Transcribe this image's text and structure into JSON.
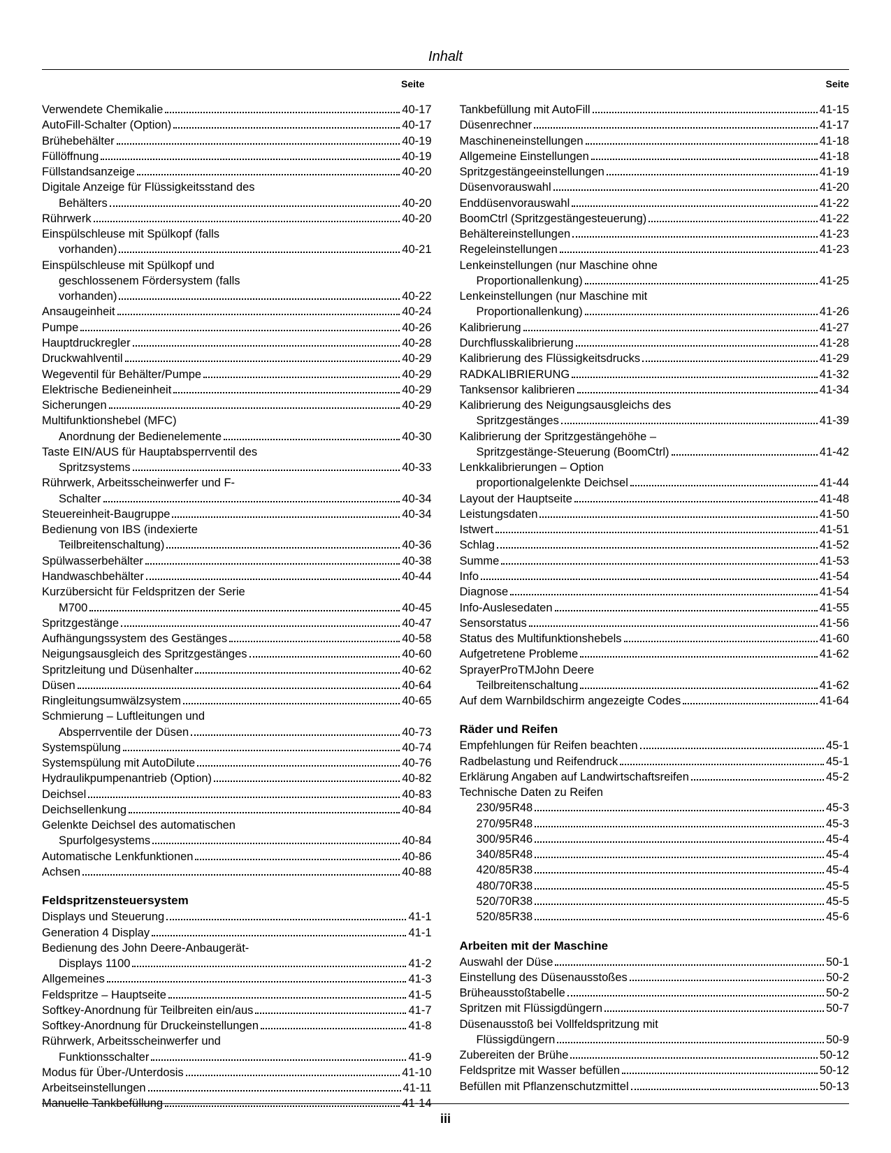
{
  "title": "Inhalt",
  "page_label": "Seite",
  "page_number": "iii",
  "left_column": [
    {
      "type": "entry",
      "label": "Verwendete Chemikalie",
      "page": "40-17"
    },
    {
      "type": "entry",
      "label": "AutoFill-Schalter (Option)",
      "page": "40-17"
    },
    {
      "type": "entry",
      "label": "Brühebehälter",
      "page": "40-19"
    },
    {
      "type": "entry",
      "label": "Füllöffnung",
      "page": "40-19"
    },
    {
      "type": "entry",
      "label": "Füllstandsanzeige",
      "page": "40-20"
    },
    {
      "type": "noleader",
      "label": "Digitale Anzeige für Flüssigkeitsstand des"
    },
    {
      "type": "entry",
      "indent": 1,
      "label": "Behälters",
      "page": "40-20"
    },
    {
      "type": "entry",
      "label": "Rührwerk",
      "page": "40-20"
    },
    {
      "type": "noleader",
      "label": "Einspülschleuse mit Spülkopf (falls"
    },
    {
      "type": "entry",
      "indent": 1,
      "label": "vorhanden)",
      "page": "40-21"
    },
    {
      "type": "noleader",
      "label": "Einspülschleuse mit Spülkopf und"
    },
    {
      "type": "noleader",
      "indent": 1,
      "label": "geschlossenem Fördersystem (falls"
    },
    {
      "type": "entry",
      "indent": 1,
      "label": "vorhanden)",
      "page": "40-22"
    },
    {
      "type": "entry",
      "label": "Ansaugeinheit",
      "page": "40-24"
    },
    {
      "type": "entry",
      "label": "Pumpe",
      "page": "40-26"
    },
    {
      "type": "entry",
      "label": "Hauptdruckregler",
      "page": "40-28"
    },
    {
      "type": "entry",
      "label": "Druckwahlventil",
      "page": "40-29"
    },
    {
      "type": "entry",
      "label": "Wegeventil für Behälter/Pumpe",
      "page": "40-29"
    },
    {
      "type": "entry",
      "label": "Elektrische Bedieneinheit",
      "page": "40-29"
    },
    {
      "type": "entry",
      "label": "Sicherungen",
      "page": "40-29"
    },
    {
      "type": "noleader",
      "label": "Multifunktionshebel (MFC)"
    },
    {
      "type": "entry",
      "indent": 1,
      "label": "Anordnung der Bedienelemente",
      "page": "40-30"
    },
    {
      "type": "noleader",
      "label": "Taste EIN/AUS für Hauptabsperrventil des"
    },
    {
      "type": "entry",
      "indent": 1,
      "label": "Spritzsystems",
      "page": "40-33"
    },
    {
      "type": "noleader",
      "label": "Rührwerk, Arbeitsscheinwerfer und F-"
    },
    {
      "type": "entry",
      "indent": 1,
      "label": "Schalter",
      "page": "40-34"
    },
    {
      "type": "entry",
      "label": "Steuereinheit-Baugruppe",
      "page": "40-34"
    },
    {
      "type": "noleader",
      "label": "Bedienung von IBS (indexierte"
    },
    {
      "type": "entry",
      "indent": 1,
      "label": "Teilbreitenschaltung)",
      "page": "40-36"
    },
    {
      "type": "entry",
      "label": "Spülwasserbehälter",
      "page": "40-38"
    },
    {
      "type": "entry",
      "label": "Handwaschbehälter",
      "page": "40-44"
    },
    {
      "type": "noleader",
      "label": "Kurzübersicht für Feldspritzen der Serie"
    },
    {
      "type": "entry",
      "indent": 1,
      "label": "M700",
      "page": "40-45"
    },
    {
      "type": "entry",
      "label": "Spritzgestänge",
      "page": "40-47"
    },
    {
      "type": "entry",
      "label": "Aufhängungssystem des Gestänges",
      "page": "40-58"
    },
    {
      "type": "entry",
      "label": "Neigungsausgleich des Spritzgestänges",
      "page": "40-60"
    },
    {
      "type": "entry",
      "label": "Spritzleitung und Düsenhalter",
      "page": "40-62"
    },
    {
      "type": "entry",
      "label": "Düsen",
      "page": "40-64"
    },
    {
      "type": "entry",
      "label": "Ringleitungsumwälzsystem",
      "page": "40-65"
    },
    {
      "type": "noleader",
      "label": "Schmierung – Luftleitungen und"
    },
    {
      "type": "entry",
      "indent": 1,
      "label": "Absperrventile der Düsen",
      "page": "40-73"
    },
    {
      "type": "entry",
      "label": "Systemspülung",
      "page": "40-74"
    },
    {
      "type": "entry",
      "label": "Systemspülung mit AutoDilute",
      "page": "40-76"
    },
    {
      "type": "entry",
      "label": "Hydraulikpumpenantrieb (Option)",
      "page": "40-82"
    },
    {
      "type": "entry",
      "label": "Deichsel",
      "page": "40-83"
    },
    {
      "type": "entry",
      "label": "Deichsellenkung",
      "page": "40-84"
    },
    {
      "type": "noleader",
      "label": "Gelenkte Deichsel des automatischen"
    },
    {
      "type": "entry",
      "indent": 1,
      "label": "Spurfolgesystems",
      "page": "40-84"
    },
    {
      "type": "entry",
      "label": "Automatische Lenkfunktionen",
      "page": "40-86"
    },
    {
      "type": "entry",
      "label": "Achsen",
      "page": "40-88"
    },
    {
      "type": "heading",
      "label": "Feldspritzensteuersystem"
    },
    {
      "type": "entry",
      "label": "Displays und Steuerung",
      "page": "41-1"
    },
    {
      "type": "entry",
      "label": "Generation 4 Display",
      "page": "41-1"
    },
    {
      "type": "noleader",
      "label": "Bedienung des John Deere-Anbaugerät-"
    },
    {
      "type": "entry",
      "indent": 1,
      "label": "Displays 1100",
      "page": "41-2"
    },
    {
      "type": "entry",
      "label": "Allgemeines",
      "page": "41-3"
    },
    {
      "type": "entry",
      "label": "Feldspritze – Hauptseite",
      "page": "41-5"
    },
    {
      "type": "entry",
      "label": "Softkey-Anordnung für Teilbreiten ein/aus",
      "page": "41-7"
    },
    {
      "type": "entry",
      "label": "Softkey-Anordnung für Druckeinstellungen",
      "page": "41-8"
    },
    {
      "type": "noleader",
      "label": "Rührwerk, Arbeitsscheinwerfer und"
    },
    {
      "type": "entry",
      "indent": 1,
      "label": "Funktionsschalter",
      "page": "41-9"
    },
    {
      "type": "entry",
      "label": "Modus für Über-/Unterdosis",
      "page": "41-10"
    },
    {
      "type": "entry",
      "label": "Arbeitseinstellungen",
      "page": "41-11"
    },
    {
      "type": "entry",
      "label": "Manuelle Tankbefüllung",
      "page": "41-14"
    }
  ],
  "right_column": [
    {
      "type": "entry",
      "label": "Tankbefüllung mit AutoFill",
      "page": "41-15"
    },
    {
      "type": "entry",
      "label": "Düsenrechner",
      "page": "41-17"
    },
    {
      "type": "entry",
      "label": "Maschineneinstellungen",
      "page": "41-18"
    },
    {
      "type": "entry",
      "label": "Allgemeine Einstellungen",
      "page": "41-18"
    },
    {
      "type": "entry",
      "label": "Spritzgestängeeinstellungen",
      "page": "41-19"
    },
    {
      "type": "entry",
      "label": "Düsenvorauswahl",
      "page": "41-20"
    },
    {
      "type": "entry",
      "label": "Enddüsenvorauswahl",
      "page": "41-22"
    },
    {
      "type": "entry",
      "label": "BoomCtrl (Spritzgestängesteuerung)",
      "page": "41-22"
    },
    {
      "type": "entry",
      "label": "Behältereinstellungen",
      "page": "41-23"
    },
    {
      "type": "entry",
      "label": "Regeleinstellungen",
      "page": "41-23"
    },
    {
      "type": "noleader",
      "label": "Lenkeinstellungen (nur Maschine ohne"
    },
    {
      "type": "entry",
      "indent": 1,
      "label": "Proportionallenkung)",
      "page": "41-25"
    },
    {
      "type": "noleader",
      "label": "Lenkeinstellungen (nur Maschine mit"
    },
    {
      "type": "entry",
      "indent": 1,
      "label": "Proportionallenkung)",
      "page": "41-26"
    },
    {
      "type": "entry",
      "label": "Kalibrierung",
      "page": "41-27"
    },
    {
      "type": "entry",
      "label": "Durchflusskalibrierung",
      "page": "41-28"
    },
    {
      "type": "entry",
      "label": "Kalibrierung des Flüssigkeitsdrucks",
      "page": "41-29"
    },
    {
      "type": "entry",
      "label": "RADKALIBRIERUNG",
      "page": "41-32"
    },
    {
      "type": "entry",
      "label": "Tanksensor kalibrieren",
      "page": "41-34"
    },
    {
      "type": "noleader",
      "label": "Kalibrierung des Neigungsausgleichs des"
    },
    {
      "type": "entry",
      "indent": 1,
      "label": "Spritzgestänges",
      "page": "41-39"
    },
    {
      "type": "noleader",
      "label": "Kalibrierung der Spritzgestängehöhe –"
    },
    {
      "type": "entry",
      "indent": 1,
      "label": "Spritzgestänge-Steuerung (BoomCtrl)",
      "page": "41-42"
    },
    {
      "type": "noleader",
      "label": "Lenkkalibrierungen – Option"
    },
    {
      "type": "entry",
      "indent": 1,
      "label": "proportionalgelenkte Deichsel",
      "page": "41-44"
    },
    {
      "type": "entry",
      "label": "Layout der Hauptseite",
      "page": "41-48"
    },
    {
      "type": "entry",
      "label": "Leistungsdaten",
      "page": "41-50"
    },
    {
      "type": "entry",
      "label": "Istwert",
      "page": "41-51"
    },
    {
      "type": "entry",
      "label": "Schlag",
      "page": "41-52"
    },
    {
      "type": "entry",
      "label": "Summe",
      "page": "41-53"
    },
    {
      "type": "entry",
      "label": "Info",
      "page": "41-54"
    },
    {
      "type": "entry",
      "label": "Diagnose",
      "page": "41-54"
    },
    {
      "type": "entry",
      "label": "Info-Auslesedaten",
      "page": "41-55"
    },
    {
      "type": "entry",
      "label": "Sensorstatus",
      "page": "41-56"
    },
    {
      "type": "entry",
      "label": "Status des Multifunktionshebels",
      "page": "41-60"
    },
    {
      "type": "entry",
      "label": "Aufgetretene Probleme",
      "page": "41-62"
    },
    {
      "type": "noleader",
      "label": "SprayerProTMJohn Deere"
    },
    {
      "type": "entry",
      "indent": 1,
      "label": "Teilbreitenschaltung",
      "page": "41-62"
    },
    {
      "type": "entry",
      "label": "Auf dem Warnbildschirm angezeigte Codes",
      "page": "41-64"
    },
    {
      "type": "heading",
      "label": "Räder und Reifen"
    },
    {
      "type": "entry",
      "label": "Empfehlungen für Reifen beachten",
      "page": "45-1"
    },
    {
      "type": "entry",
      "label": "Radbelastung und Reifendruck",
      "page": "45-1"
    },
    {
      "type": "entry",
      "label": "Erklärung Angaben auf Landwirtschaftsreifen",
      "page": "45-2"
    },
    {
      "type": "noleader",
      "label": "Technische Daten zu Reifen"
    },
    {
      "type": "entry",
      "indent": 1,
      "label": "230/95R48",
      "page": "45-3"
    },
    {
      "type": "entry",
      "indent": 1,
      "label": "270/95R48",
      "page": "45-3"
    },
    {
      "type": "entry",
      "indent": 1,
      "label": "300/95R46",
      "page": "45-4"
    },
    {
      "type": "entry",
      "indent": 1,
      "label": "340/85R48",
      "page": "45-4"
    },
    {
      "type": "entry",
      "indent": 1,
      "label": "420/85R38",
      "page": "45-4"
    },
    {
      "type": "entry",
      "indent": 1,
      "label": "480/70R38",
      "page": "45-5"
    },
    {
      "type": "entry",
      "indent": 1,
      "label": "520/70R38",
      "page": "45-5"
    },
    {
      "type": "entry",
      "indent": 1,
      "label": "520/85R38",
      "page": "45-6"
    },
    {
      "type": "heading",
      "label": "Arbeiten mit der Maschine"
    },
    {
      "type": "entry",
      "label": "Auswahl der Düse",
      "page": "50-1"
    },
    {
      "type": "entry",
      "label": "Einstellung des Düsenausstoßes",
      "page": "50-2"
    },
    {
      "type": "entry",
      "label": "Brüheausstoßtabelle",
      "page": "50-2"
    },
    {
      "type": "entry",
      "label": "Spritzen mit Flüssigdüngern",
      "page": "50-7"
    },
    {
      "type": "noleader",
      "label": "Düsenausstoß bei Vollfeldspritzung mit"
    },
    {
      "type": "entry",
      "indent": 1,
      "label": "Flüssigdüngern",
      "page": "50-9"
    },
    {
      "type": "entry",
      "label": "Zubereiten der Brühe",
      "page": "50-12"
    },
    {
      "type": "entry",
      "label": "Feldspritze mit Wasser befüllen",
      "page": "50-12"
    },
    {
      "type": "entry",
      "label": "Befüllen mit Pflanzenschutzmittel",
      "page": "50-13"
    }
  ]
}
